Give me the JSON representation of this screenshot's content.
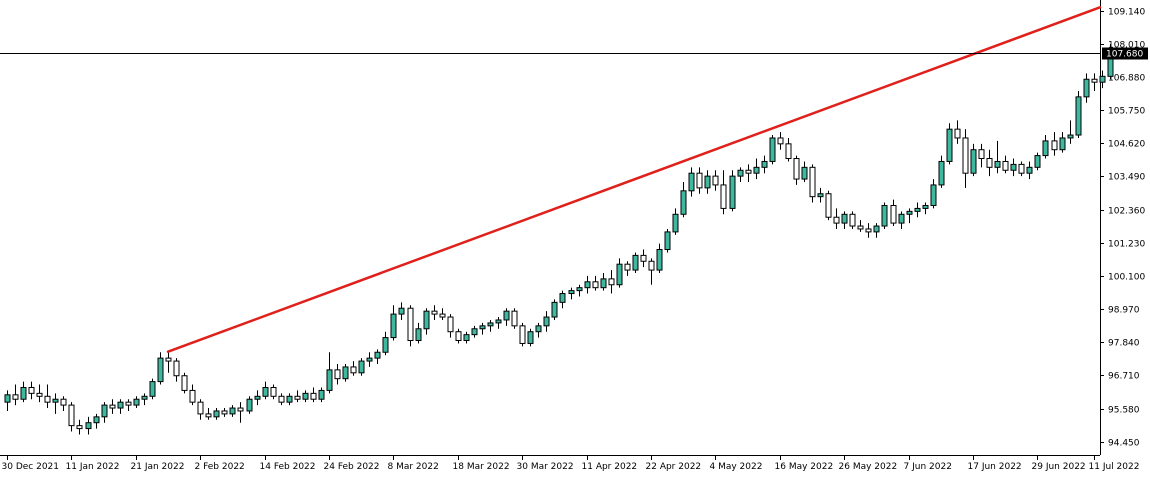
{
  "chart_data": {
    "type": "candlestick",
    "symbol": "",
    "price_axis": {
      "range": [
        94.0,
        109.5
      ],
      "ticks": [
        "109.140",
        "108.010",
        "106.880",
        "105.750",
        "104.620",
        "103.490",
        "102.360",
        "101.230",
        "100.100",
        "98.970",
        "97.840",
        "96.710",
        "95.580",
        "94.450"
      ]
    },
    "time_axis": {
      "labels": [
        "30 Dec 2021",
        "11 Jan 2022",
        "21 Jan 2022",
        "2 Feb 2022",
        "14 Feb 2022",
        "24 Feb 2022",
        "8 Mar 2022",
        "18 Mar 2022",
        "30 Mar 2022",
        "11 Apr 2022",
        "22 Apr 2022",
        "4 May 2022",
        "16 May 2022",
        "26 May 2022",
        "7 Jun 2022",
        "17 Jun 2022",
        "29 Jun 2022",
        "11 Jul 2022"
      ],
      "label_bar_index": [
        0,
        8,
        16,
        24,
        32,
        40,
        48,
        56,
        64,
        72,
        80,
        88,
        96,
        104,
        112,
        120,
        128,
        135
      ]
    },
    "current_price": 107.68,
    "current_price_label": "107.680",
    "trendline": {
      "color": "#e0201b",
      "start": {
        "bar": 20,
        "price": 97.52
      },
      "end": {
        "bar": 138,
        "price": 109.25
      }
    },
    "candle_colors": {
      "bull_fill": "#3fb8a0",
      "bear_fill": "#ffffff",
      "outline": "#000000"
    },
    "candles": [
      {
        "o": 95.8,
        "h": 96.2,
        "l": 95.5,
        "c": 96.05
      },
      {
        "o": 96.05,
        "h": 96.4,
        "l": 95.7,
        "c": 95.9
      },
      {
        "o": 95.9,
        "h": 96.5,
        "l": 95.8,
        "c": 96.3
      },
      {
        "o": 96.3,
        "h": 96.5,
        "l": 95.9,
        "c": 96.1
      },
      {
        "o": 96.1,
        "h": 96.4,
        "l": 95.8,
        "c": 96.0
      },
      {
        "o": 96.0,
        "h": 96.4,
        "l": 95.6,
        "c": 95.8
      },
      {
        "o": 95.8,
        "h": 96.1,
        "l": 95.4,
        "c": 95.9
      },
      {
        "o": 95.9,
        "h": 96.0,
        "l": 95.5,
        "c": 95.7
      },
      {
        "o": 95.7,
        "h": 95.8,
        "l": 94.8,
        "c": 95.0
      },
      {
        "o": 95.0,
        "h": 95.2,
        "l": 94.7,
        "c": 94.9
      },
      {
        "o": 94.9,
        "h": 95.3,
        "l": 94.7,
        "c": 95.1
      },
      {
        "o": 95.1,
        "h": 95.4,
        "l": 94.9,
        "c": 95.3
      },
      {
        "o": 95.3,
        "h": 95.8,
        "l": 95.1,
        "c": 95.7
      },
      {
        "o": 95.7,
        "h": 95.9,
        "l": 95.4,
        "c": 95.6
      },
      {
        "o": 95.6,
        "h": 95.9,
        "l": 95.4,
        "c": 95.8
      },
      {
        "o": 95.8,
        "h": 95.9,
        "l": 95.5,
        "c": 95.7
      },
      {
        "o": 95.7,
        "h": 96.0,
        "l": 95.6,
        "c": 95.9
      },
      {
        "o": 95.9,
        "h": 96.1,
        "l": 95.7,
        "c": 96.0
      },
      {
        "o": 96.0,
        "h": 96.6,
        "l": 95.9,
        "c": 96.5
      },
      {
        "o": 96.5,
        "h": 97.5,
        "l": 96.4,
        "c": 97.3
      },
      {
        "o": 97.3,
        "h": 97.5,
        "l": 96.8,
        "c": 97.2
      },
      {
        "o": 97.2,
        "h": 97.3,
        "l": 96.5,
        "c": 96.7
      },
      {
        "o": 96.7,
        "h": 96.8,
        "l": 96.1,
        "c": 96.2
      },
      {
        "o": 96.2,
        "h": 96.4,
        "l": 95.7,
        "c": 95.8
      },
      {
        "o": 95.8,
        "h": 95.9,
        "l": 95.2,
        "c": 95.4
      },
      {
        "o": 95.4,
        "h": 95.6,
        "l": 95.2,
        "c": 95.3
      },
      {
        "o": 95.3,
        "h": 95.6,
        "l": 95.2,
        "c": 95.5
      },
      {
        "o": 95.5,
        "h": 95.6,
        "l": 95.3,
        "c": 95.4
      },
      {
        "o": 95.4,
        "h": 95.7,
        "l": 95.3,
        "c": 95.6
      },
      {
        "o": 95.6,
        "h": 95.8,
        "l": 95.1,
        "c": 95.5
      },
      {
        "o": 95.5,
        "h": 96.0,
        "l": 95.4,
        "c": 95.9
      },
      {
        "o": 95.9,
        "h": 96.2,
        "l": 95.7,
        "c": 96.0
      },
      {
        "o": 96.0,
        "h": 96.5,
        "l": 95.9,
        "c": 96.3
      },
      {
        "o": 96.3,
        "h": 96.4,
        "l": 95.9,
        "c": 96.0
      },
      {
        "o": 96.0,
        "h": 96.1,
        "l": 95.7,
        "c": 95.8
      },
      {
        "o": 95.8,
        "h": 96.1,
        "l": 95.7,
        "c": 96.0
      },
      {
        "o": 96.0,
        "h": 96.2,
        "l": 95.8,
        "c": 95.9
      },
      {
        "o": 95.9,
        "h": 96.2,
        "l": 95.8,
        "c": 96.1
      },
      {
        "o": 96.1,
        "h": 96.3,
        "l": 95.8,
        "c": 95.9
      },
      {
        "o": 95.9,
        "h": 96.3,
        "l": 95.8,
        "c": 96.2
      },
      {
        "o": 96.2,
        "h": 97.5,
        "l": 96.1,
        "c": 96.9
      },
      {
        "o": 96.9,
        "h": 97.1,
        "l": 96.4,
        "c": 96.6
      },
      {
        "o": 96.6,
        "h": 97.1,
        "l": 96.5,
        "c": 97.0
      },
      {
        "o": 97.0,
        "h": 97.2,
        "l": 96.7,
        "c": 96.8
      },
      {
        "o": 96.8,
        "h": 97.3,
        "l": 96.7,
        "c": 97.2
      },
      {
        "o": 97.2,
        "h": 97.5,
        "l": 97.0,
        "c": 97.3
      },
      {
        "o": 97.3,
        "h": 97.6,
        "l": 97.1,
        "c": 97.5
      },
      {
        "o": 97.5,
        "h": 98.2,
        "l": 97.4,
        "c": 98.0
      },
      {
        "o": 98.0,
        "h": 99.1,
        "l": 97.9,
        "c": 98.8
      },
      {
        "o": 98.8,
        "h": 99.2,
        "l": 98.6,
        "c": 99.0
      },
      {
        "o": 99.0,
        "h": 99.1,
        "l": 97.7,
        "c": 97.9
      },
      {
        "o": 97.9,
        "h": 98.5,
        "l": 97.8,
        "c": 98.3
      },
      {
        "o": 98.3,
        "h": 99.0,
        "l": 98.1,
        "c": 98.9
      },
      {
        "o": 98.9,
        "h": 99.1,
        "l": 98.6,
        "c": 98.8
      },
      {
        "o": 98.8,
        "h": 99.0,
        "l": 98.6,
        "c": 98.7
      },
      {
        "o": 98.7,
        "h": 98.8,
        "l": 98.0,
        "c": 98.2
      },
      {
        "o": 98.2,
        "h": 98.3,
        "l": 97.8,
        "c": 97.9
      },
      {
        "o": 97.9,
        "h": 98.2,
        "l": 97.8,
        "c": 98.1
      },
      {
        "o": 98.1,
        "h": 98.4,
        "l": 98.0,
        "c": 98.3
      },
      {
        "o": 98.3,
        "h": 98.5,
        "l": 98.1,
        "c": 98.4
      },
      {
        "o": 98.4,
        "h": 98.6,
        "l": 98.2,
        "c": 98.5
      },
      {
        "o": 98.5,
        "h": 98.7,
        "l": 98.3,
        "c": 98.6
      },
      {
        "o": 98.6,
        "h": 99.0,
        "l": 98.4,
        "c": 98.9
      },
      {
        "o": 98.9,
        "h": 99.0,
        "l": 98.3,
        "c": 98.4
      },
      {
        "o": 98.4,
        "h": 98.5,
        "l": 97.7,
        "c": 97.8
      },
      {
        "o": 97.8,
        "h": 98.3,
        "l": 97.7,
        "c": 98.2
      },
      {
        "o": 98.2,
        "h": 98.5,
        "l": 98.0,
        "c": 98.4
      },
      {
        "o": 98.4,
        "h": 98.9,
        "l": 98.2,
        "c": 98.7
      },
      {
        "o": 98.7,
        "h": 99.3,
        "l": 98.6,
        "c": 99.2
      },
      {
        "o": 99.2,
        "h": 99.6,
        "l": 99.0,
        "c": 99.5
      },
      {
        "o": 99.5,
        "h": 99.7,
        "l": 99.3,
        "c": 99.6
      },
      {
        "o": 99.6,
        "h": 99.8,
        "l": 99.4,
        "c": 99.7
      },
      {
        "o": 99.7,
        "h": 100.1,
        "l": 99.5,
        "c": 99.9
      },
      {
        "o": 99.9,
        "h": 100.1,
        "l": 99.6,
        "c": 99.7
      },
      {
        "o": 99.7,
        "h": 100.2,
        "l": 99.6,
        "c": 100.0
      },
      {
        "o": 100.0,
        "h": 100.3,
        "l": 99.5,
        "c": 99.8
      },
      {
        "o": 99.8,
        "h": 100.7,
        "l": 99.7,
        "c": 100.5
      },
      {
        "o": 100.5,
        "h": 100.6,
        "l": 100.1,
        "c": 100.3
      },
      {
        "o": 100.3,
        "h": 100.9,
        "l": 100.2,
        "c": 100.8
      },
      {
        "o": 100.8,
        "h": 101.0,
        "l": 100.4,
        "c": 100.6
      },
      {
        "o": 100.6,
        "h": 100.7,
        "l": 99.8,
        "c": 100.3
      },
      {
        "o": 100.3,
        "h": 101.2,
        "l": 100.2,
        "c": 101.0
      },
      {
        "o": 101.0,
        "h": 101.7,
        "l": 100.9,
        "c": 101.6
      },
      {
        "o": 101.6,
        "h": 102.4,
        "l": 101.5,
        "c": 102.2
      },
      {
        "o": 102.2,
        "h": 103.3,
        "l": 102.1,
        "c": 103.0
      },
      {
        "o": 103.0,
        "h": 103.8,
        "l": 102.8,
        "c": 103.6
      },
      {
        "o": 103.6,
        "h": 103.8,
        "l": 102.9,
        "c": 103.1
      },
      {
        "o": 103.1,
        "h": 103.7,
        "l": 102.9,
        "c": 103.5
      },
      {
        "o": 103.5,
        "h": 103.7,
        "l": 103.0,
        "c": 103.2
      },
      {
        "o": 103.2,
        "h": 103.7,
        "l": 102.2,
        "c": 102.4
      },
      {
        "o": 102.4,
        "h": 103.7,
        "l": 102.3,
        "c": 103.5
      },
      {
        "o": 103.5,
        "h": 103.8,
        "l": 103.3,
        "c": 103.7
      },
      {
        "o": 103.7,
        "h": 103.9,
        "l": 103.3,
        "c": 103.6
      },
      {
        "o": 103.6,
        "h": 104.1,
        "l": 103.4,
        "c": 103.8
      },
      {
        "o": 103.8,
        "h": 104.2,
        "l": 103.6,
        "c": 104.0
      },
      {
        "o": 104.0,
        "h": 104.9,
        "l": 103.9,
        "c": 104.8
      },
      {
        "o": 104.8,
        "h": 105.0,
        "l": 104.4,
        "c": 104.6
      },
      {
        "o": 104.6,
        "h": 104.8,
        "l": 104.0,
        "c": 104.1
      },
      {
        "o": 104.1,
        "h": 104.2,
        "l": 103.2,
        "c": 103.4
      },
      {
        "o": 103.4,
        "h": 104.0,
        "l": 103.3,
        "c": 103.8
      },
      {
        "o": 103.8,
        "h": 103.9,
        "l": 102.6,
        "c": 102.8
      },
      {
        "o": 102.8,
        "h": 103.1,
        "l": 102.6,
        "c": 102.9
      },
      {
        "o": 102.9,
        "h": 103.0,
        "l": 102.0,
        "c": 102.1
      },
      {
        "o": 102.1,
        "h": 102.4,
        "l": 101.7,
        "c": 101.9
      },
      {
        "o": 101.9,
        "h": 102.3,
        "l": 101.7,
        "c": 102.2
      },
      {
        "o": 102.2,
        "h": 102.3,
        "l": 101.7,
        "c": 101.8
      },
      {
        "o": 101.8,
        "h": 102.0,
        "l": 101.6,
        "c": 101.7
      },
      {
        "o": 101.7,
        "h": 101.9,
        "l": 101.4,
        "c": 101.6
      },
      {
        "o": 101.6,
        "h": 101.9,
        "l": 101.4,
        "c": 101.8
      },
      {
        "o": 101.8,
        "h": 102.6,
        "l": 101.7,
        "c": 102.5
      },
      {
        "o": 102.5,
        "h": 102.7,
        "l": 101.8,
        "c": 101.9
      },
      {
        "o": 101.9,
        "h": 102.3,
        "l": 101.7,
        "c": 102.2
      },
      {
        "o": 102.2,
        "h": 102.4,
        "l": 101.9,
        "c": 102.3
      },
      {
        "o": 102.3,
        "h": 102.6,
        "l": 102.1,
        "c": 102.4
      },
      {
        "o": 102.4,
        "h": 102.6,
        "l": 102.2,
        "c": 102.5
      },
      {
        "o": 102.5,
        "h": 103.4,
        "l": 102.4,
        "c": 103.2
      },
      {
        "o": 103.2,
        "h": 104.2,
        "l": 103.1,
        "c": 104.0
      },
      {
        "o": 104.0,
        "h": 105.3,
        "l": 103.9,
        "c": 105.1
      },
      {
        "o": 105.1,
        "h": 105.4,
        "l": 104.6,
        "c": 104.8
      },
      {
        "o": 104.8,
        "h": 105.1,
        "l": 103.1,
        "c": 103.6
      },
      {
        "o": 103.6,
        "h": 104.6,
        "l": 103.5,
        "c": 104.4
      },
      {
        "o": 104.4,
        "h": 104.6,
        "l": 103.8,
        "c": 104.1
      },
      {
        "o": 104.1,
        "h": 104.4,
        "l": 103.5,
        "c": 103.8
      },
      {
        "o": 103.8,
        "h": 104.7,
        "l": 103.6,
        "c": 104.0
      },
      {
        "o": 104.0,
        "h": 104.2,
        "l": 103.6,
        "c": 103.7
      },
      {
        "o": 103.7,
        "h": 104.1,
        "l": 103.5,
        "c": 103.9
      },
      {
        "o": 103.9,
        "h": 104.0,
        "l": 103.5,
        "c": 103.6
      },
      {
        "o": 103.6,
        "h": 104.0,
        "l": 103.4,
        "c": 103.8
      },
      {
        "o": 103.8,
        "h": 104.3,
        "l": 103.7,
        "c": 104.2
      },
      {
        "o": 104.2,
        "h": 104.9,
        "l": 104.1,
        "c": 104.7
      },
      {
        "o": 104.7,
        "h": 105.0,
        "l": 104.2,
        "c": 104.4
      },
      {
        "o": 104.4,
        "h": 105.0,
        "l": 104.3,
        "c": 104.8
      },
      {
        "o": 104.8,
        "h": 105.4,
        "l": 104.6,
        "c": 104.9
      },
      {
        "o": 104.9,
        "h": 106.4,
        "l": 104.8,
        "c": 106.2
      },
      {
        "o": 106.2,
        "h": 107.0,
        "l": 106.0,
        "c": 106.8
      },
      {
        "o": 106.8,
        "h": 107.0,
        "l": 106.4,
        "c": 106.7
      },
      {
        "o": 106.7,
        "h": 107.1,
        "l": 106.5,
        "c": 106.9
      },
      {
        "o": 106.9,
        "h": 108.0,
        "l": 106.8,
        "c": 107.68
      }
    ]
  }
}
